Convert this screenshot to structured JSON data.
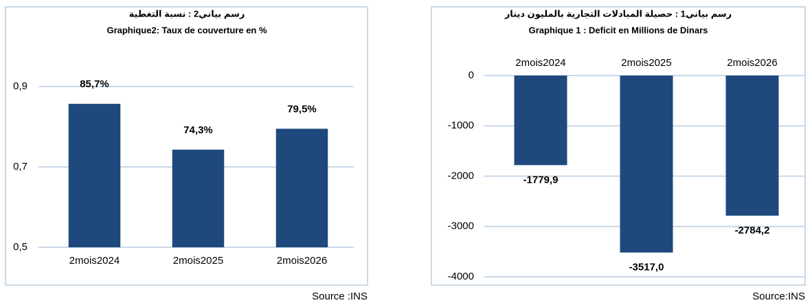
{
  "chart_data": [
    {
      "type": "bar",
      "title": "رسم بياني2 : نسبة التغطية",
      "subtitle": "Graphique2: Taux de couverture en %",
      "categories": [
        "2mois2024",
        "2mois2025",
        "2mois2026"
      ],
      "values": [
        0.857,
        0.743,
        0.795
      ],
      "value_labels": [
        "85,7%",
        "74,3%",
        "79,5%"
      ],
      "color": "#1f497d",
      "ylim": [
        0.5,
        0.9
      ],
      "yticks": [
        {
          "value": 0.5,
          "label": "0,5"
        },
        {
          "value": 0.7,
          "label": "0,7"
        },
        {
          "value": 0.9,
          "label": "0,9"
        }
      ],
      "grid": true,
      "source": "Source :INS"
    },
    {
      "type": "bar",
      "title": "رسم بياني1 : حصيلة المبادلات التجارية بالمليون دينار",
      "subtitle": "Graphique 1 : Deficit en Millions de Dinars",
      "categories": [
        "2mois2024",
        "2mois2025",
        "2mois2026"
      ],
      "values": [
        -1779.9,
        -3517.0,
        -2784.2
      ],
      "value_labels": [
        "-1779,9",
        "-3517,0",
        "-2784,2"
      ],
      "color": "#1f497d",
      "ylim": [
        -4000,
        0
      ],
      "yticks": [
        -4000,
        -3000,
        -2000,
        -1000,
        0
      ],
      "grid": true,
      "source": "Source:INS"
    }
  ]
}
